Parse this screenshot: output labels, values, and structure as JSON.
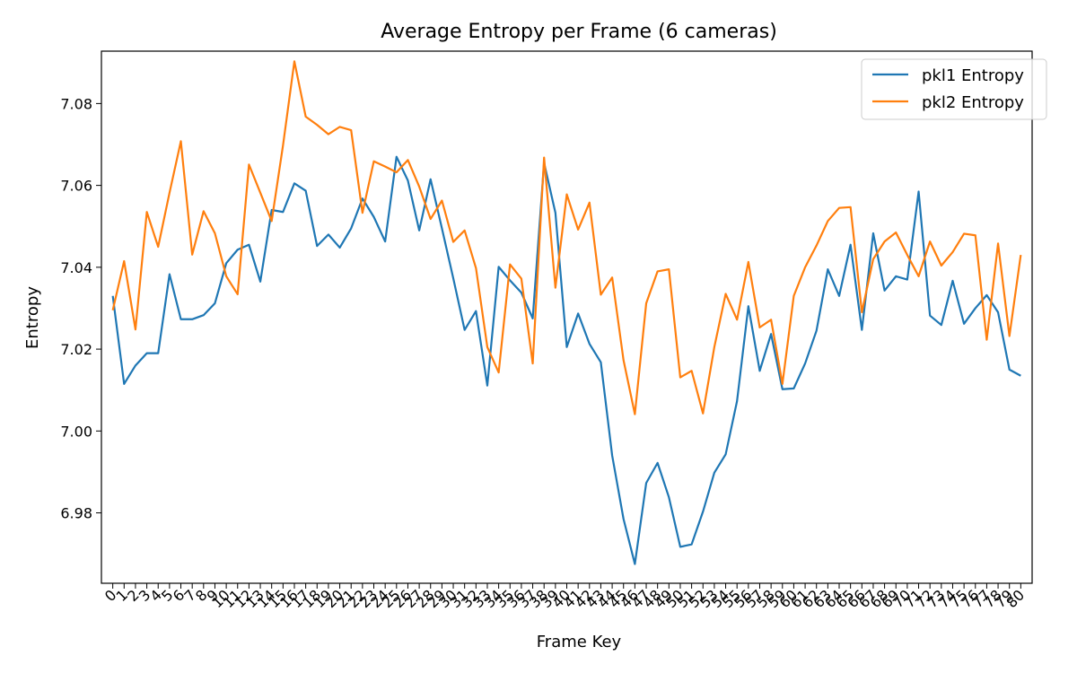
{
  "chart_data": {
    "type": "line",
    "title": "Average Entropy per Frame (6 cameras)",
    "xlabel": "Frame Key",
    "ylabel": "Entropy",
    "xlim": [
      -1,
      81
    ],
    "ylim": [
      6.9628,
      7.0928
    ],
    "grid": false,
    "legend": "top-right",
    "yticks": [
      "6.98",
      "7.00",
      "7.02",
      "7.04",
      "7.06",
      "7.08"
    ],
    "categories": [
      "0",
      "1",
      "2",
      "3",
      "4",
      "5",
      "6",
      "7",
      "8",
      "9",
      "10",
      "11",
      "12",
      "13",
      "14",
      "15",
      "16",
      "17",
      "18",
      "19",
      "20",
      "21",
      "22",
      "23",
      "24",
      "25",
      "26",
      "27",
      "28",
      "29",
      "30",
      "31",
      "32",
      "33",
      "34",
      "35",
      "36",
      "37",
      "38",
      "39",
      "40",
      "41",
      "42",
      "43",
      "44",
      "45",
      "46",
      "47",
      "48",
      "49",
      "50",
      "51",
      "52",
      "53",
      "54",
      "55",
      "56",
      "57",
      "58",
      "59",
      "60",
      "61",
      "62",
      "63",
      "64",
      "65",
      "66",
      "67",
      "68",
      "69",
      "70",
      "71",
      "72",
      "73",
      "74",
      "75",
      "76",
      "77",
      "78",
      "79",
      "80"
    ],
    "series": [
      {
        "name": "pkl1 Entropy",
        "color": "#1f77b4",
        "values": [
          7.033,
          7.0115,
          7.016,
          7.019,
          7.019,
          7.0383,
          7.0273,
          7.0273,
          7.0283,
          7.0312,
          7.041,
          7.0443,
          7.0455,
          7.0365,
          7.054,
          7.0535,
          7.0605,
          7.0587,
          7.0452,
          7.048,
          7.0448,
          7.0495,
          7.0568,
          7.0523,
          7.0463,
          7.067,
          7.0612,
          7.049,
          7.0615,
          7.0495,
          7.0373,
          7.0247,
          7.0293,
          7.0111,
          7.0401,
          7.0368,
          7.0338,
          7.0275,
          7.0655,
          7.0533,
          7.0205,
          7.0287,
          7.0213,
          7.0168,
          6.994,
          6.9785,
          6.9675,
          6.9873,
          6.9922,
          6.9838,
          6.9717,
          6.9723,
          6.9803,
          6.9898,
          6.9943,
          7.0073,
          7.0305,
          7.0147,
          7.0237,
          7.0102,
          7.0104,
          7.0165,
          7.0245,
          7.0395,
          7.033,
          7.0455,
          7.0247,
          7.0483,
          7.0343,
          7.0378,
          7.037,
          7.0585,
          7.0282,
          7.0259,
          7.0367,
          7.0262,
          7.03,
          7.0332,
          7.029,
          7.015,
          7.0135
        ]
      },
      {
        "name": "pkl2 Entropy",
        "color": "#ff7f0e",
        "values": [
          7.0295,
          7.0415,
          7.0248,
          7.0535,
          7.045,
          7.0582,
          7.0708,
          7.0431,
          7.0537,
          7.0483,
          7.0378,
          7.0334,
          7.0651,
          7.0582,
          7.0513,
          7.0698,
          7.0903,
          7.0768,
          7.0748,
          7.0725,
          7.0743,
          7.0735,
          7.0533,
          7.0659,
          7.0646,
          7.0632,
          7.0662,
          7.0597,
          7.0518,
          7.0563,
          7.0462,
          7.049,
          7.0398,
          7.0205,
          7.0143,
          7.0407,
          7.0372,
          7.0165,
          7.0668,
          7.035,
          7.0578,
          7.0492,
          7.0558,
          7.0333,
          7.0375,
          7.0173,
          7.0041,
          7.0312,
          7.039,
          7.0395,
          7.0131,
          7.0147,
          7.0043,
          7.0205,
          7.0335,
          7.0272,
          7.0413,
          7.0253,
          7.0272,
          7.0115,
          7.033,
          7.04,
          7.0453,
          7.0513,
          7.0545,
          7.0547,
          7.029,
          7.042,
          7.0463,
          7.0485,
          7.043,
          7.0378,
          7.0463,
          7.0404,
          7.0437,
          7.0482,
          7.0478,
          7.0223,
          7.0458,
          7.0232,
          7.043
        ]
      }
    ]
  }
}
